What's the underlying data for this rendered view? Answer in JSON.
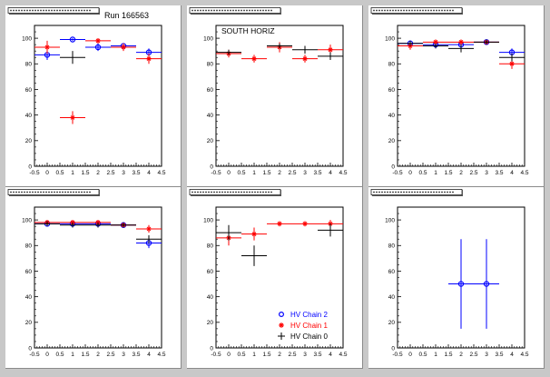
{
  "window": {
    "run_label": "Run 166563"
  },
  "legend": {
    "entries": [
      {
        "label": "HV Chain 2",
        "color": "#0000ff",
        "marker": "circle"
      },
      {
        "label": "HV Chain 1",
        "color": "#ff0000",
        "marker": "star"
      },
      {
        "label": "HV Chain 0",
        "color": "#000000",
        "marker": "cross"
      }
    ]
  },
  "colors": {
    "chain2": "#0000ff",
    "chain1": "#ff0000",
    "chain0": "#000000",
    "pad": "#ffffff",
    "canvas": "#c8c8c8"
  },
  "chart_data": [
    {
      "type": "scatter",
      "title": "",
      "annotation": "",
      "xlim": [
        -0.5,
        4.5
      ],
      "ylim": [
        0,
        110
      ],
      "xticks": [
        "-0.5",
        "0",
        "0.5",
        "1",
        "1.5",
        "2",
        "2.5",
        "3",
        "3.5",
        "4",
        "4.5"
      ],
      "yticks": [
        "0",
        "20",
        "40",
        "60",
        "80",
        "100"
      ],
      "series": [
        {
          "name": "HV Chain 2",
          "points": [
            {
              "x": 0,
              "y": 87,
              "ex": 0.5,
              "ey": 4
            },
            {
              "x": 1,
              "y": 99,
              "ex": 0.5,
              "ey": 1
            },
            {
              "x": 2,
              "y": 93,
              "ex": 0.5,
              "ey": 3
            },
            {
              "x": 3,
              "y": 94,
              "ex": 0.5,
              "ey": 2
            },
            {
              "x": 4,
              "y": 89,
              "ex": 0.5,
              "ey": 3
            }
          ]
        },
        {
          "name": "HV Chain 1",
          "points": [
            {
              "x": 0,
              "y": 93,
              "ex": 0.5,
              "ey": 5
            },
            {
              "x": 1,
              "y": 38,
              "ex": 0.5,
              "ey": 5
            },
            {
              "x": 2,
              "y": 98,
              "ex": 0.5,
              "ey": 2
            },
            {
              "x": 3,
              "y": 93,
              "ex": 0.5,
              "ey": 3
            },
            {
              "x": 4,
              "y": 84,
              "ex": 0.5,
              "ey": 4
            }
          ]
        },
        {
          "name": "HV Chain 0",
          "points": [
            {
              "x": 1,
              "y": 85,
              "ex": 0.5,
              "ey": 5
            }
          ]
        }
      ]
    },
    {
      "type": "scatter",
      "title": "",
      "annotation": "SOUTH HORIZ",
      "xlim": [
        -0.5,
        4.5
      ],
      "ylim": [
        0,
        110
      ],
      "xticks": [
        "-0.5",
        "0",
        "0.5",
        "1",
        "1.5",
        "2",
        "2.5",
        "3",
        "3.5",
        "4",
        "4.5"
      ],
      "yticks": [
        "0",
        "20",
        "40",
        "60",
        "80",
        "100"
      ],
      "series": [
        {
          "name": "HV Chain 2",
          "points": []
        },
        {
          "name": "HV Chain 1",
          "points": [
            {
              "x": 0,
              "y": 88,
              "ex": 0.5,
              "ey": 3
            },
            {
              "x": 1,
              "y": 84,
              "ex": 0.5,
              "ey": 3
            },
            {
              "x": 2,
              "y": 93,
              "ex": 0.5,
              "ey": 4
            },
            {
              "x": 3,
              "y": 84,
              "ex": 0.5,
              "ey": 3
            },
            {
              "x": 4,
              "y": 91,
              "ex": 0.5,
              "ey": 4
            }
          ]
        },
        {
          "name": "HV Chain 0",
          "points": [
            {
              "x": 0,
              "y": 89,
              "ex": 0.5,
              "ey": 2
            },
            {
              "x": 2,
              "y": 94,
              "ex": 0.5,
              "ey": 2
            },
            {
              "x": 3,
              "y": 91,
              "ex": 0.5,
              "ey": 3
            },
            {
              "x": 4,
              "y": 86,
              "ex": 0.5,
              "ey": 3
            }
          ]
        }
      ]
    },
    {
      "type": "scatter",
      "title": "",
      "annotation": "",
      "xlim": [
        -0.5,
        4.5
      ],
      "ylim": [
        0,
        110
      ],
      "xticks": [
        "-0.5",
        "0",
        "0.5",
        "1",
        "1.5",
        "2",
        "2.5",
        "3",
        "3.5",
        "4",
        "4.5"
      ],
      "yticks": [
        "0",
        "20",
        "40",
        "60",
        "80",
        "100"
      ],
      "series": [
        {
          "name": "HV Chain 2",
          "points": [
            {
              "x": 0,
              "y": 96,
              "ex": 0.5,
              "ey": 2
            },
            {
              "x": 1,
              "y": 95,
              "ex": 0.5,
              "ey": 2
            },
            {
              "x": 2,
              "y": 95,
              "ex": 0.5,
              "ey": 2
            },
            {
              "x": 3,
              "y": 97,
              "ex": 0.5,
              "ey": 2
            },
            {
              "x": 4,
              "y": 89,
              "ex": 0.5,
              "ey": 3
            }
          ]
        },
        {
          "name": "HV Chain 1",
          "points": [
            {
              "x": 0,
              "y": 94,
              "ex": 0.5,
              "ey": 3
            },
            {
              "x": 1,
              "y": 97,
              "ex": 0.5,
              "ey": 2
            },
            {
              "x": 2,
              "y": 97,
              "ex": 0.5,
              "ey": 2
            },
            {
              "x": 3,
              "y": 97,
              "ex": 0.5,
              "ey": 2
            },
            {
              "x": 4,
              "y": 80,
              "ex": 0.5,
              "ey": 4
            }
          ]
        },
        {
          "name": "HV Chain 0",
          "points": [
            {
              "x": 0,
              "y": 96,
              "ex": 0.5,
              "ey": 2
            },
            {
              "x": 1,
              "y": 94,
              "ex": 0.5,
              "ey": 2
            },
            {
              "x": 2,
              "y": 92,
              "ex": 0.5,
              "ey": 3
            },
            {
              "x": 3,
              "y": 97,
              "ex": 0.5,
              "ey": 2
            },
            {
              "x": 4,
              "y": 85,
              "ex": 0.5,
              "ey": 3
            }
          ]
        }
      ]
    },
    {
      "type": "scatter",
      "title": "",
      "annotation": "",
      "xlim": [
        -0.5,
        4.5
      ],
      "ylim": [
        0,
        110
      ],
      "xticks": [
        "-0.5",
        "0",
        "0.5",
        "1",
        "1.5",
        "2",
        "2.5",
        "3",
        "3.5",
        "4",
        "4.5"
      ],
      "yticks": [
        "0",
        "20",
        "40",
        "60",
        "80",
        "100"
      ],
      "series": [
        {
          "name": "HV Chain 2",
          "points": [
            {
              "x": 0,
              "y": 97,
              "ex": 0.5,
              "ey": 2
            },
            {
              "x": 1,
              "y": 97,
              "ex": 0.5,
              "ey": 2
            },
            {
              "x": 2,
              "y": 97,
              "ex": 0.5,
              "ey": 2
            },
            {
              "x": 3,
              "y": 96,
              "ex": 0.5,
              "ey": 2
            },
            {
              "x": 4,
              "y": 82,
              "ex": 0.5,
              "ey": 4
            }
          ]
        },
        {
          "name": "HV Chain 1",
          "points": [
            {
              "x": 0,
              "y": 98,
              "ex": 0.5,
              "ey": 2
            },
            {
              "x": 1,
              "y": 98,
              "ex": 0.5,
              "ey": 2
            },
            {
              "x": 2,
              "y": 98,
              "ex": 0.5,
              "ey": 2
            },
            {
              "x": 3,
              "y": 96,
              "ex": 0.5,
              "ey": 2
            },
            {
              "x": 4,
              "y": 93,
              "ex": 0.5,
              "ey": 3
            }
          ]
        },
        {
          "name": "HV Chain 0",
          "points": [
            {
              "x": 0,
              "y": 97,
              "ex": 0.5,
              "ey": 2
            },
            {
              "x": 1,
              "y": 96,
              "ex": 0.5,
              "ey": 2
            },
            {
              "x": 2,
              "y": 96,
              "ex": 0.5,
              "ey": 2
            },
            {
              "x": 3,
              "y": 96,
              "ex": 0.5,
              "ey": 2
            },
            {
              "x": 4,
              "y": 85,
              "ex": 0.5,
              "ey": 3
            }
          ]
        }
      ]
    },
    {
      "type": "scatter",
      "title": "",
      "annotation": "",
      "xlim": [
        -0.5,
        4.5
      ],
      "ylim": [
        0,
        110
      ],
      "xticks": [
        "-0.5",
        "0",
        "0.5",
        "1",
        "1.5",
        "2",
        "2.5",
        "3",
        "3.5",
        "4",
        "4.5"
      ],
      "yticks": [
        "0",
        "20",
        "40",
        "60",
        "80",
        "100"
      ],
      "series": [
        {
          "name": "HV Chain 2",
          "points": []
        },
        {
          "name": "HV Chain 1",
          "points": [
            {
              "x": 0,
              "y": 86,
              "ex": 0.5,
              "ey": 6
            },
            {
              "x": 1,
              "y": 89,
              "ex": 0.5,
              "ey": 5
            },
            {
              "x": 2,
              "y": 97,
              "ex": 0.5,
              "ey": 2
            },
            {
              "x": 3,
              "y": 97,
              "ex": 0.5,
              "ey": 2
            },
            {
              "x": 4,
              "y": 97,
              "ex": 0.5,
              "ey": 3
            }
          ]
        },
        {
          "name": "HV Chain 0",
          "points": [
            {
              "x": 0,
              "y": 90,
              "ex": 0.5,
              "ey": 6
            },
            {
              "x": 1,
              "y": 72,
              "ex": 0.5,
              "ey": 8
            },
            {
              "x": 4,
              "y": 92,
              "ex": 0.5,
              "ey": 5
            }
          ]
        }
      ]
    },
    {
      "type": "scatter",
      "title": "",
      "annotation": "",
      "xlim": [
        -0.5,
        4.5
      ],
      "ylim": [
        0,
        110
      ],
      "xticks": [
        "-0.5",
        "0",
        "0.5",
        "1",
        "1.5",
        "2",
        "2.5",
        "3",
        "3.5",
        "4",
        "4.5"
      ],
      "yticks": [
        "0",
        "20",
        "40",
        "60",
        "80",
        "100"
      ],
      "series": [
        {
          "name": "HV Chain 2",
          "points": [
            {
              "x": 2,
              "y": 50,
              "ex": 0.5,
              "ey": 35
            },
            {
              "x": 3,
              "y": 50,
              "ex": 0.5,
              "ey": 35
            }
          ]
        },
        {
          "name": "HV Chain 1",
          "points": []
        },
        {
          "name": "HV Chain 0",
          "points": []
        }
      ]
    }
  ]
}
